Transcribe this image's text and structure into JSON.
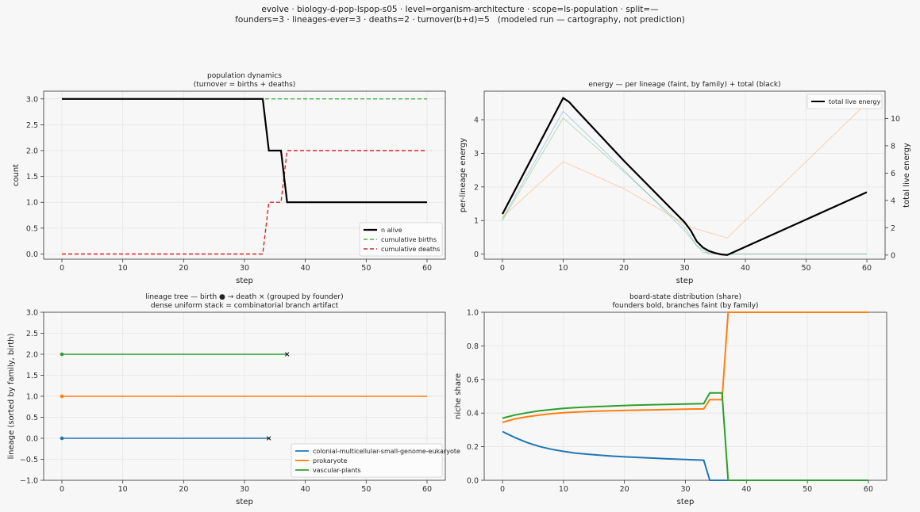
{
  "figure": {
    "title_line1": "evolve · biology-d-pop-lspop-s05 · level=organism-architecture · scope=ls-population · split=—",
    "title_line2": "founders=3 · lineages-ever=3 · deaths=2 · turnover(b+d)=5   (modeled run — cartography, not prediction)"
  },
  "colors": {
    "blue": "#1f77b4",
    "orange": "#ff7f0e",
    "green": "#2ca02c",
    "red": "#d62728",
    "black": "#000000",
    "grid": "#e6e6e6",
    "axes_bg": "#f7f7f7"
  },
  "chart_data": [
    {
      "id": "population",
      "type": "line",
      "title_lines": [
        "population dynamics",
        "(turnover = births + deaths)"
      ],
      "xlabel": "step",
      "ylabel": "count",
      "xlim": [
        -3,
        63
      ],
      "ylim": [
        -0.1,
        3.15
      ],
      "xticks": [
        0,
        10,
        20,
        30,
        40,
        50,
        60
      ],
      "yticks": [
        0.0,
        0.5,
        1.0,
        1.5,
        2.0,
        2.5,
        3.0
      ],
      "ytick_labels": [
        "0.0",
        "0.5",
        "1.0",
        "1.5",
        "2.0",
        "2.5",
        "3.0"
      ],
      "grid": true,
      "legend_position": "lower-right",
      "series": [
        {
          "name": "n alive",
          "color": "#000000",
          "dash": "",
          "width": 2.2,
          "x": [
            0,
            33,
            34,
            35,
            36,
            37,
            60
          ],
          "y": [
            3,
            3,
            2,
            2,
            2,
            1,
            1
          ]
        },
        {
          "name": "cumulative births",
          "color": "#2ca02c",
          "dash": "5,3",
          "width": 1.2,
          "x": [
            0,
            60
          ],
          "y": [
            3,
            3
          ]
        },
        {
          "name": "cumulative deaths",
          "color": "#d62728",
          "dash": "5,3",
          "width": 1.4,
          "x": [
            0,
            33,
            34,
            35,
            36,
            37,
            60
          ],
          "y": [
            0,
            0,
            1,
            1,
            1,
            2,
            2
          ]
        }
      ]
    },
    {
      "id": "energy",
      "type": "line",
      "title_lines": [
        "energy — per lineage (faint, by family) + total (black)"
      ],
      "xlabel": "step",
      "ylabel": "per-lineage energy",
      "ylabel_right": "total live energy",
      "xlim": [
        -3,
        63
      ],
      "ylim": [
        -0.15,
        4.85
      ],
      "ylim_right": [
        -0.3,
        12.0
      ],
      "xticks": [
        0,
        10,
        20,
        30,
        40,
        50,
        60
      ],
      "yticks": [
        0,
        1,
        2,
        3,
        4
      ],
      "ytick_labels": [
        "0",
        "1",
        "2",
        "3",
        "4"
      ],
      "yticks_right": [
        0,
        2,
        4,
        6,
        8,
        10
      ],
      "ytick_labels_right": [
        "0",
        "2",
        "4",
        "6",
        "8",
        "10"
      ],
      "grid": true,
      "legend_position": "top-right",
      "series": [
        {
          "name": "colonial-multicellular-small-genome-eukaryote",
          "axis": "left",
          "color": "#1f77b4",
          "opacity": 0.35,
          "width": 0.9,
          "x": [
            0,
            10,
            20,
            30,
            32,
            34,
            60
          ],
          "y": [
            1.05,
            4.25,
            2.5,
            0.7,
            0.25,
            0.0,
            0.0
          ]
        },
        {
          "name": "prokaryote",
          "axis": "left",
          "color": "#ff7f0e",
          "opacity": 0.35,
          "width": 0.9,
          "x": [
            0,
            10,
            20,
            31,
            37,
            60
          ],
          "y": [
            1.1,
            2.75,
            1.95,
            0.8,
            0.48,
            4.5
          ]
        },
        {
          "name": "vascular-plants",
          "axis": "left",
          "color": "#2ca02c",
          "opacity": 0.35,
          "width": 0.9,
          "x": [
            0,
            10,
            20,
            30,
            32,
            33,
            37,
            60
          ],
          "y": [
            1.0,
            4.05,
            2.45,
            0.8,
            0.25,
            0.05,
            0.0,
            0.0
          ]
        },
        {
          "name": "total live energy",
          "axis": "right",
          "color": "#000000",
          "opacity": 1,
          "width": 2.2,
          "x": [
            0,
            10,
            11,
            12,
            20,
            30,
            31,
            32,
            33,
            34,
            35,
            36,
            37,
            60
          ],
          "y": [
            3.0,
            11.5,
            11.2,
            10.7,
            6.9,
            2.4,
            1.8,
            1.0,
            0.55,
            0.3,
            0.15,
            0.05,
            0.0,
            4.6
          ]
        }
      ],
      "legend": [
        "total live energy"
      ]
    },
    {
      "id": "lineage-tree",
      "type": "line",
      "title_lines": [
        "lineage tree — birth ● → death ×  (grouped by founder)",
        "dense uniform stack = combinatorial branch artifact"
      ],
      "xlabel": "step",
      "ylabel": "lineage (sorted by family, birth)",
      "xlim": [
        -3,
        63
      ],
      "ylim": [
        -1.0,
        3.0
      ],
      "xticks": [
        0,
        10,
        20,
        30,
        40,
        50,
        60
      ],
      "yticks": [
        -1.0,
        -0.5,
        0.0,
        0.5,
        1.0,
        1.5,
        2.0,
        2.5,
        3.0
      ],
      "ytick_labels": [
        "−1.0",
        "−0.5",
        "0.0",
        "0.5",
        "1.0",
        "1.5",
        "2.0",
        "2.5",
        "3.0"
      ],
      "grid": true,
      "legend_position": "lower-right",
      "series": [
        {
          "name": "colonial-multicellular-small-genome-eukaryote",
          "color": "#1f77b4",
          "y": 0,
          "birth": 0,
          "end": 34,
          "died": true
        },
        {
          "name": "prokaryote",
          "color": "#ff7f0e",
          "y": 1,
          "birth": 0,
          "end": 60,
          "died": false
        },
        {
          "name": "vascular-plants",
          "color": "#2ca02c",
          "y": 2,
          "birth": 0,
          "end": 37,
          "died": true
        }
      ]
    },
    {
      "id": "board-share",
      "type": "line",
      "title_lines": [
        "board-state distribution (share)",
        "founders bold, branches faint (by family)"
      ],
      "xlabel": "step",
      "ylabel": "niche share",
      "xlim": [
        -3,
        63
      ],
      "ylim": [
        0.0,
        1.0
      ],
      "xticks": [
        0,
        10,
        20,
        30,
        40,
        50,
        60
      ],
      "yticks": [
        0.0,
        0.2,
        0.4,
        0.6,
        0.8,
        1.0
      ],
      "ytick_labels": [
        "0.0",
        "0.2",
        "0.4",
        "0.6",
        "0.8",
        "1.0"
      ],
      "grid": true,
      "series": [
        {
          "name": "colonial-multicellular-small-genome-eukaryote",
          "color": "#1f77b4",
          "width": 2,
          "x": [
            0,
            2,
            4,
            6,
            8,
            10,
            12,
            15,
            18,
            21,
            24,
            27,
            30,
            33,
            34,
            60
          ],
          "y": [
            0.29,
            0.255,
            0.225,
            0.202,
            0.185,
            0.172,
            0.162,
            0.152,
            0.144,
            0.138,
            0.133,
            0.128,
            0.124,
            0.12,
            0.0,
            0.0
          ]
        },
        {
          "name": "prokaryote",
          "color": "#ff7f0e",
          "width": 2,
          "x": [
            0,
            2,
            4,
            6,
            8,
            10,
            12,
            15,
            18,
            21,
            24,
            27,
            30,
            33,
            34,
            35,
            36,
            37,
            60
          ],
          "y": [
            0.345,
            0.365,
            0.378,
            0.388,
            0.396,
            0.402,
            0.406,
            0.411,
            0.414,
            0.417,
            0.419,
            0.421,
            0.423,
            0.425,
            0.48,
            0.48,
            0.48,
            1.0,
            1.0
          ]
        },
        {
          "name": "vascular-plants",
          "color": "#2ca02c",
          "width": 2,
          "x": [
            0,
            2,
            4,
            6,
            8,
            10,
            12,
            15,
            18,
            21,
            24,
            27,
            30,
            33,
            34,
            35,
            36,
            37,
            60
          ],
          "y": [
            0.37,
            0.388,
            0.402,
            0.413,
            0.421,
            0.428,
            0.433,
            0.438,
            0.442,
            0.446,
            0.449,
            0.452,
            0.454,
            0.456,
            0.52,
            0.52,
            0.52,
            0.0,
            0.0
          ]
        }
      ]
    }
  ]
}
